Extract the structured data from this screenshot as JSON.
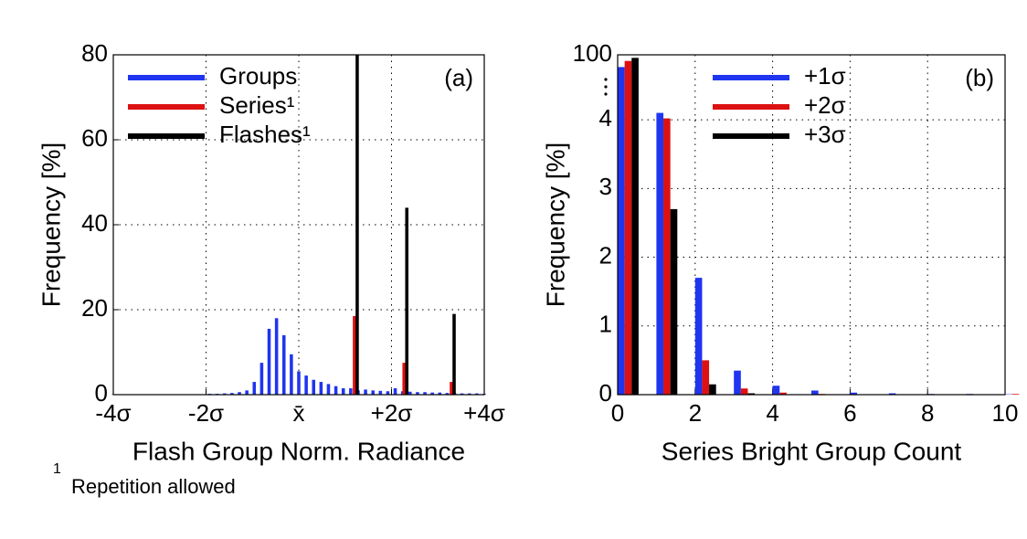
{
  "chart_data": [
    {
      "type": "bar",
      "annotation": "(a)",
      "xlabel": "Flash Group Norm. Radiance",
      "ylabel": "Frequency [%]",
      "xlim": [
        -4,
        4
      ],
      "ylim": [
        0,
        80
      ],
      "xticks": [
        {
          "value": -4,
          "label": "-4σ"
        },
        {
          "value": -2,
          "label": "-2σ"
        },
        {
          "value": 0,
          "label": "x̄"
        },
        {
          "value": 2,
          "label": "+2σ"
        },
        {
          "value": 4,
          "label": "+4σ"
        }
      ],
      "yticks": [
        0,
        20,
        40,
        60,
        80
      ],
      "grid": true,
      "legend": "upper left",
      "series": [
        {
          "name": "Groups",
          "color": "#1f35f0",
          "x": [
            -4,
            -3.84,
            -3.68,
            -3.52,
            -3.36,
            -3.2,
            -3.04,
            -2.88,
            -2.72,
            -2.56,
            -2.4,
            -2.24,
            -2.08,
            -1.92,
            -1.76,
            -1.6,
            -1.44,
            -1.28,
            -1.12,
            -0.96,
            -0.8,
            -0.64,
            -0.48,
            -0.32,
            -0.16,
            0,
            0.16,
            0.32,
            0.48,
            0.64,
            0.8,
            0.96,
            1.12,
            1.28,
            1.44,
            1.6,
            1.76,
            1.92,
            2.08,
            2.24,
            2.4,
            2.56,
            2.72,
            2.88,
            3.04,
            3.2,
            3.36,
            3.52,
            3.68,
            3.84,
            4
          ],
          "values": [
            0.1,
            0.1,
            0.1,
            0.1,
            0.1,
            0.1,
            0.1,
            0.1,
            0.1,
            0.1,
            0.1,
            0.1,
            0.1,
            0.2,
            0.2,
            0.3,
            0.4,
            0.6,
            1,
            3,
            7.5,
            15.5,
            18,
            14,
            9.5,
            5.5,
            4.5,
            3.5,
            3,
            2.5,
            2,
            1.5,
            1.5,
            1,
            1.2,
            1,
            0.9,
            0.8,
            1.5,
            0.8,
            0.7,
            0.6,
            0.6,
            0.5,
            0.5,
            0.4,
            0.4,
            0.3,
            0.3,
            0.3,
            0.2
          ]
        },
        {
          "name": "Series¹",
          "color": "#dd1111",
          "x": [
            1.2,
            2.27,
            3.29
          ],
          "values": [
            18.5,
            7.5,
            3
          ]
        },
        {
          "name": "Flashes¹",
          "color": "#000000",
          "x": [
            1.26,
            2.33,
            3.35
          ],
          "values": [
            80,
            44,
            19
          ]
        }
      ]
    },
    {
      "type": "bar",
      "annotation": "(b)",
      "xlabel": "Series Bright Group Count",
      "ylabel": "Frequency [%]",
      "xlim": [
        0,
        10
      ],
      "ylim": [
        0,
        100
      ],
      "ybreak": [
        4.5,
        95
      ],
      "xticks": [
        0,
        2,
        4,
        6,
        8,
        10
      ],
      "yticks": [
        0,
        1,
        2,
        3,
        4,
        100
      ],
      "grid": true,
      "legend": "upper right",
      "x": [
        0,
        1,
        2,
        3,
        4,
        5,
        6,
        7,
        8,
        9,
        10
      ],
      "series": [
        {
          "name": "+1σ",
          "color": "#1f35f0",
          "values": [
            98,
            4.1,
            1.7,
            0.35,
            0.13,
            0.06,
            0.03,
            0.02,
            0.01,
            0.01,
            0.005
          ]
        },
        {
          "name": "+2σ",
          "color": "#dd1111",
          "values": [
            99,
            4.02,
            0.5,
            0.09,
            0.03,
            0.01,
            0.005,
            0,
            0,
            0,
            0.01
          ]
        },
        {
          "name": "+3σ",
          "color": "#000000",
          "values": [
            99.5,
            2.7,
            0.15,
            0.02,
            0,
            0,
            0,
            0,
            0,
            0,
            0
          ]
        }
      ]
    }
  ],
  "footnote": {
    "mark": "1",
    "text": "Repetition allowed"
  }
}
